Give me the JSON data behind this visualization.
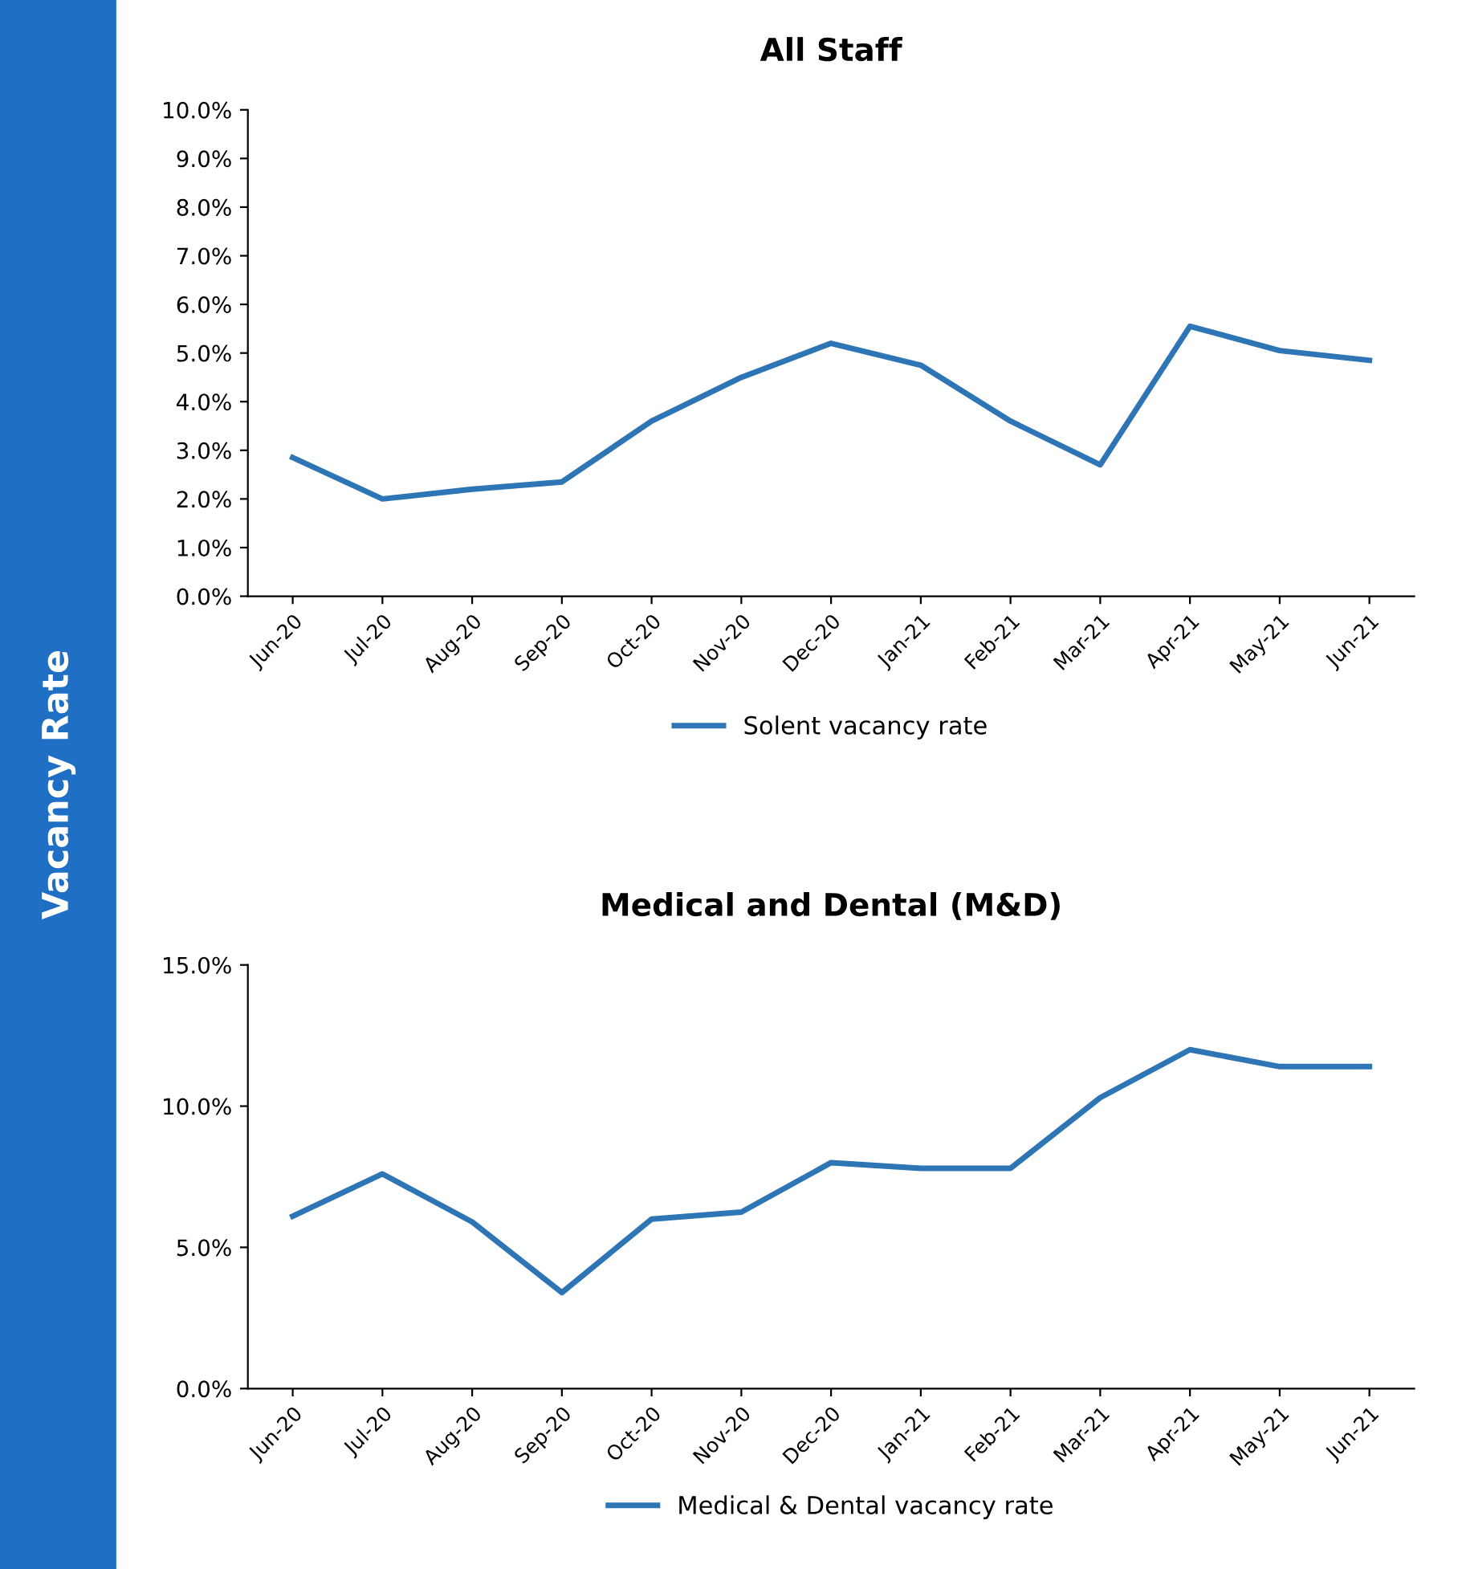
{
  "chart_data": [
    {
      "type": "line",
      "title": "All Staff",
      "ylabel": "Vacancy Rate",
      "categories": [
        "Jun-20",
        "Jul-20",
        "Aug-20",
        "Sep-20",
        "Oct-20",
        "Nov-20",
        "Dec-20",
        "Jan-21",
        "Feb-21",
        "Mar-21",
        "Apr-21",
        "May-21",
        "Jun-21"
      ],
      "series": [
        {
          "name": "Solent vacancy rate",
          "color": "#2e75b6",
          "values": [
            2.85,
            2.0,
            2.2,
            2.35,
            3.6,
            4.5,
            5.2,
            4.75,
            3.6,
            2.7,
            5.55,
            5.05,
            4.85
          ]
        }
      ],
      "ylim": [
        0,
        10
      ],
      "yticks": [
        {
          "value": 0,
          "label": "0.0%"
        },
        {
          "value": 1,
          "label": "1.0%"
        },
        {
          "value": 2,
          "label": "2.0%"
        },
        {
          "value": 3,
          "label": "3.0%"
        },
        {
          "value": 4,
          "label": "4.0%"
        },
        {
          "value": 5,
          "label": "5.0%"
        },
        {
          "value": 6,
          "label": "6.0%"
        },
        {
          "value": 7,
          "label": "7.0%"
        },
        {
          "value": 8,
          "label": "8.0%"
        },
        {
          "value": 9,
          "label": "9.0%"
        },
        {
          "value": 10,
          "label": "10.0%"
        }
      ],
      "legend": "bottom",
      "grid": false
    },
    {
      "type": "line",
      "title": "Medical and Dental (M&D)",
      "categories": [
        "Jun-20",
        "Jul-20",
        "Aug-20",
        "Sep-20",
        "Oct-20",
        "Nov-20",
        "Dec-20",
        "Jan-21",
        "Feb-21",
        "Mar-21",
        "Apr-21",
        "May-21",
        "Jun-21"
      ],
      "series": [
        {
          "name": "Medical & Dental vacancy rate",
          "color": "#2e75b6",
          "values": [
            6.1,
            7.6,
            5.9,
            3.4,
            6.0,
            6.25,
            8.0,
            7.8,
            7.8,
            10.3,
            12.0,
            11.4,
            11.4
          ]
        }
      ],
      "ylim": [
        0,
        15
      ],
      "yticks": [
        {
          "value": 0,
          "label": "0.0%"
        },
        {
          "value": 5,
          "label": "5.0%"
        },
        {
          "value": 10,
          "label": "10.0%"
        },
        {
          "value": 15,
          "label": "15.0%"
        }
      ],
      "legend": "bottom",
      "grid": false
    }
  ]
}
